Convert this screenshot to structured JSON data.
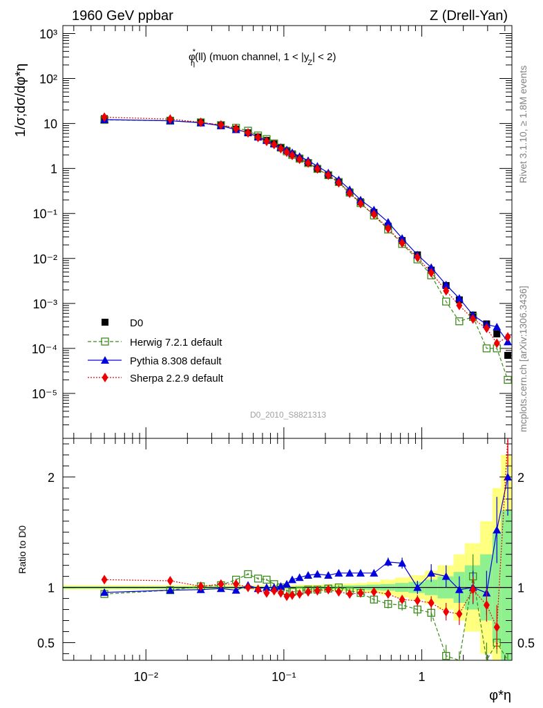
{
  "header": {
    "left": "1960 GeV ppbar",
    "right": "Z (Drell-Yan)"
  },
  "side": {
    "rivet": "Rivet 3.1.10, ≥ 1.8M events",
    "mcplots": "mcplots.cern.ch [arXiv:1306.3436]"
  },
  "analysis_id": "D0_2010_S8821313",
  "colors": {
    "data": "#000000",
    "herwig": "#3a8a1a",
    "pythia": "#0000dd",
    "sherpa": "#ee0000",
    "band_inner": "#8ef08e",
    "band_outer": "#ffff80"
  },
  "chart_data": [
    {
      "type": "scatter",
      "title": "φ*η(ll) (muon channel, 1 < |yZ| < 2)",
      "title_parts": {
        "phi": "φ",
        "star": "*",
        "eta": "η",
        "main": "(ll) (muon channel, 1 < |y",
        "ysub": "Z",
        "tail": "| < 2)"
      },
      "xlabel": "φ*η",
      "ylabel": "1/σ;dσ/dφ*η",
      "xscale": "log",
      "yscale": "log",
      "xlim": [
        0.0025,
        4.5
      ],
      "ylim": [
        1e-06,
        1500
      ],
      "x_ticks": [
        "10⁻²",
        "10⁻¹",
        "1"
      ],
      "y_ticks": [
        "10⁻⁵",
        "10⁻⁴",
        "10⁻³",
        "10⁻²",
        "10⁻¹",
        "1",
        "10",
        "10²",
        "10³"
      ],
      "legend": [
        "D0",
        "Herwig 7.2.1 default",
        "Pythia 8.308 default",
        "Sherpa 2.2.9 default"
      ],
      "legend_position": "lower-left",
      "x": [
        0.005,
        0.015,
        0.025,
        0.035,
        0.045,
        0.055,
        0.065,
        0.075,
        0.085,
        0.095,
        0.105,
        0.115,
        0.13,
        0.15,
        0.175,
        0.21,
        0.25,
        0.3,
        0.36,
        0.45,
        0.57,
        0.72,
        0.93,
        1.17,
        1.5,
        1.87,
        2.35,
        2.95,
        3.5,
        4.2
      ],
      "series": [
        {
          "name": "D0",
          "marker": "square",
          "values": [
            12.8,
            11.8,
            10.5,
            9.0,
            7.5,
            6.2,
            5.0,
            4.2,
            3.5,
            2.9,
            2.5,
            2.1,
            1.7,
            1.35,
            1.0,
            0.72,
            0.5,
            0.3,
            0.18,
            0.105,
            0.052,
            0.025,
            0.012,
            0.0055,
            0.0025,
            0.0012,
            0.00055,
            0.00035,
            0.00021,
            7e-05
          ]
        },
        {
          "name": "Herwig 7.2.1 default",
          "marker": "open-square",
          "values": [
            12.0,
            11.5,
            10.6,
            9.2,
            8.0,
            6.9,
            5.4,
            4.5,
            3.6,
            2.9,
            2.4,
            2.0,
            1.65,
            1.32,
            0.98,
            0.71,
            0.5,
            0.29,
            0.17,
            0.09,
            0.044,
            0.021,
            0.0095,
            0.0042,
            0.0011,
            0.0004,
            0.0005,
            0.0001,
            0.0001,
            2e-05
          ]
        },
        {
          "name": "Pythia 8.308 default",
          "marker": "triangle",
          "values": [
            12.2,
            11.5,
            10.3,
            8.9,
            7.3,
            6.3,
            5.0,
            4.2,
            3.55,
            2.95,
            2.6,
            2.25,
            1.85,
            1.5,
            1.12,
            0.8,
            0.56,
            0.34,
            0.2,
            0.12,
            0.064,
            0.028,
            0.012,
            0.0063,
            0.0026,
            0.0013,
            0.00055,
            0.00034,
            0.0003,
            0.00014
          ]
        },
        {
          "name": "Sherpa 2.2.9 default",
          "marker": "diamond",
          "values": [
            13.8,
            12.5,
            10.6,
            9.3,
            7.7,
            6.2,
            4.9,
            4.0,
            3.4,
            2.75,
            2.3,
            1.95,
            1.6,
            1.32,
            0.98,
            0.71,
            0.48,
            0.28,
            0.165,
            0.095,
            0.046,
            0.022,
            0.0105,
            0.0048,
            0.0019,
            0.0009,
            0.00045,
            0.00028,
            0.00013,
            0.00018
          ]
        }
      ]
    },
    {
      "type": "line",
      "ylabel": "Ratio to D0",
      "xscale": "log",
      "ylim": [
        0.34,
        2.35
      ],
      "y_ticks": [
        "0.5",
        "1",
        "2"
      ],
      "band_edges": [
        0.0025,
        0.01,
        0.02,
        0.03,
        0.04,
        0.05,
        0.06,
        0.07,
        0.08,
        0.09,
        0.1,
        0.11,
        0.12,
        0.14,
        0.16,
        0.19,
        0.23,
        0.27,
        0.33,
        0.4,
        0.5,
        0.64,
        0.8,
        1.05,
        1.3,
        1.7,
        2.05,
        2.65,
        3.25,
        3.75,
        4.5
      ],
      "band_inner": [
        0.01,
        0.01,
        0.01,
        0.01,
        0.01,
        0.01,
        0.01,
        0.01,
        0.01,
        0.01,
        0.01,
        0.01,
        0.012,
        0.012,
        0.012,
        0.015,
        0.015,
        0.018,
        0.02,
        0.025,
        0.03,
        0.04,
        0.05,
        0.07,
        0.1,
        0.14,
        0.2,
        0.3,
        0.5,
        0.7
      ],
      "band_outer": [
        0.02,
        0.02,
        0.02,
        0.02,
        0.02,
        0.02,
        0.02,
        0.02,
        0.02,
        0.02,
        0.02,
        0.02,
        0.025,
        0.025,
        0.025,
        0.03,
        0.03,
        0.035,
        0.04,
        0.05,
        0.07,
        0.09,
        0.11,
        0.15,
        0.2,
        0.3,
        0.4,
        0.6,
        0.9,
        1.2
      ],
      "series": [
        {
          "name": "Herwig 7.2.1 default",
          "values": [
            0.94,
            0.975,
            1.01,
            1.02,
            1.07,
            1.12,
            1.08,
            1.07,
            1.03,
            1.0,
            0.97,
            0.96,
            0.97,
            0.98,
            0.98,
            0.99,
            1.0,
            0.97,
            0.95,
            0.89,
            0.85,
            0.84,
            0.8,
            0.77,
            0.38,
            0.3,
            1.1,
            0.3,
            0.5,
            0.3
          ],
          "err": [
            0.01,
            0.01,
            0.01,
            0.01,
            0.01,
            0.01,
            0.01,
            0.01,
            0.01,
            0.01,
            0.01,
            0.01,
            0.01,
            0.01,
            0.02,
            0.02,
            0.02,
            0.02,
            0.03,
            0.03,
            0.04,
            0.05,
            0.06,
            0.08,
            0.1,
            0.12,
            0.2,
            0.2,
            0.1,
            0.1
          ]
        },
        {
          "name": "Pythia 8.308 default",
          "values": [
            0.955,
            0.975,
            0.98,
            0.99,
            0.975,
            1.02,
            0.99,
            1.0,
            1.0,
            1.01,
            1.03,
            1.07,
            1.09,
            1.11,
            1.12,
            1.11,
            1.13,
            1.13,
            1.13,
            1.13,
            1.23,
            1.22,
            1.0,
            1.13,
            1.1,
            0.98,
            1.0,
            0.95,
            1.52,
            2.0
          ],
          "err": [
            0.01,
            0.01,
            0.01,
            0.01,
            0.01,
            0.01,
            0.01,
            0.01,
            0.01,
            0.01,
            0.01,
            0.01,
            0.01,
            0.01,
            0.02,
            0.02,
            0.02,
            0.02,
            0.02,
            0.03,
            0.04,
            0.05,
            0.06,
            0.08,
            0.1,
            0.12,
            0.15,
            0.2,
            0.3,
            0.35
          ]
        },
        {
          "name": "Sherpa 2.2.9 default",
          "values": [
            1.07,
            1.06,
            1.01,
            1.03,
            1.03,
            1.0,
            0.98,
            0.95,
            0.97,
            0.95,
            0.92,
            0.93,
            0.94,
            0.96,
            0.97,
            0.98,
            0.96,
            0.94,
            0.95,
            0.96,
            0.94,
            0.89,
            0.88,
            0.86,
            0.78,
            0.76,
            0.98,
            0.84,
            0.64,
            2.4
          ],
          "err": [
            0.01,
            0.01,
            0.01,
            0.01,
            0.01,
            0.01,
            0.01,
            0.01,
            0.01,
            0.01,
            0.01,
            0.01,
            0.01,
            0.01,
            0.01,
            0.01,
            0.01,
            0.02,
            0.02,
            0.02,
            0.03,
            0.04,
            0.05,
            0.06,
            0.08,
            0.1,
            0.12,
            0.15,
            0.2,
            0.3
          ]
        }
      ]
    }
  ]
}
